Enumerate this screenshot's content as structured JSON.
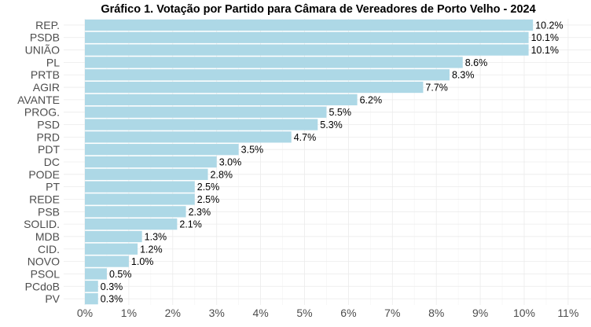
{
  "chart_data": {
    "type": "bar",
    "orientation": "horizontal",
    "title": "Gráfico 1. Votação por Partido para Câmara de Vereadores de Porto Velho - 2024",
    "xlabel": "",
    "ylabel": "",
    "categories": [
      "REP.",
      "PSDB",
      "UNIÃO",
      "PL",
      "PRTB",
      "AGIR",
      "AVANTE",
      "PROG.",
      "PSD",
      "PRD",
      "PDT",
      "DC",
      "PODE",
      "PT",
      "REDE",
      "PSB",
      "SOLID.",
      "MDB",
      "CID.",
      "NOVO",
      "PSOL",
      "PCdoB",
      "PV"
    ],
    "values": [
      10.2,
      10.1,
      10.1,
      8.6,
      8.3,
      7.7,
      6.2,
      5.5,
      5.3,
      4.7,
      3.5,
      3.0,
      2.8,
      2.5,
      2.5,
      2.3,
      2.1,
      1.3,
      1.2,
      1.0,
      0.5,
      0.3,
      0.3
    ],
    "data_labels": [
      "10.2%",
      "10.1%",
      "10.1%",
      "8.6%",
      "8.3%",
      "7.7%",
      "6.2%",
      "5.5%",
      "5.3%",
      "4.7%",
      "3.5%",
      "3.0%",
      "2.8%",
      "2.5%",
      "2.5%",
      "2.3%",
      "2.1%",
      "1.3%",
      "1.2%",
      "1.0%",
      "0.5%",
      "0.3%",
      "0.3%"
    ],
    "xlim": [
      0,
      11
    ],
    "x_ticks": [
      0,
      1,
      2,
      3,
      4,
      5,
      6,
      7,
      8,
      9,
      10,
      11
    ],
    "x_tick_labels": [
      "0%",
      "1%",
      "2%",
      "3%",
      "4%",
      "5%",
      "6%",
      "7%",
      "8%",
      "9%",
      "10%",
      "11%"
    ],
    "grid": true,
    "legend": "none",
    "bar_color": "#add8e6"
  }
}
